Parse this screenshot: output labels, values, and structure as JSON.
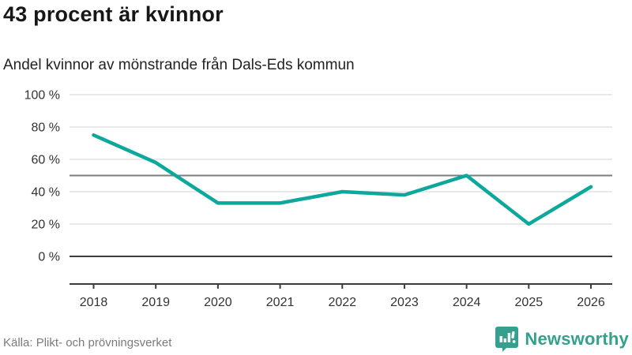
{
  "header": {
    "title": "43 procent är kvinnor",
    "subtitle": "Andel kvinnor av mönstrande från Dals-Eds kommun"
  },
  "chart_data": {
    "type": "line",
    "x": [
      "2018",
      "2019",
      "2020",
      "2021",
      "2022",
      "2023",
      "2024",
      "2025",
      "2026"
    ],
    "series": [
      {
        "name": "Andel kvinnor av mönstrande",
        "values": [
          75,
          58,
          33,
          33,
          40,
          38,
          50,
          20,
          43
        ]
      }
    ],
    "title": "43 procent är kvinnor",
    "subtitle": "Andel kvinnor av mönstrande från Dals-Eds kommun",
    "xlabel": "",
    "ylabel": "",
    "ylim": [
      0,
      100
    ],
    "yticks": [
      0,
      20,
      40,
      60,
      80,
      100
    ],
    "ytick_suffix": " %",
    "reference_line": 50,
    "grid": true,
    "legend": "none",
    "line_color": "#0ca89b"
  },
  "footer": {
    "source": "Källa: Plikt- och prövningsverket",
    "brand": "Newsworthy"
  },
  "colors": {
    "line": "#0ca89b",
    "gridline": "#e2e2e2",
    "reference_line": "#7d7d7d",
    "zero_line": "#3d3d3d",
    "axis": "#3d3d3d",
    "tick_label": "#333333",
    "brand_teal": "#35a08e"
  }
}
